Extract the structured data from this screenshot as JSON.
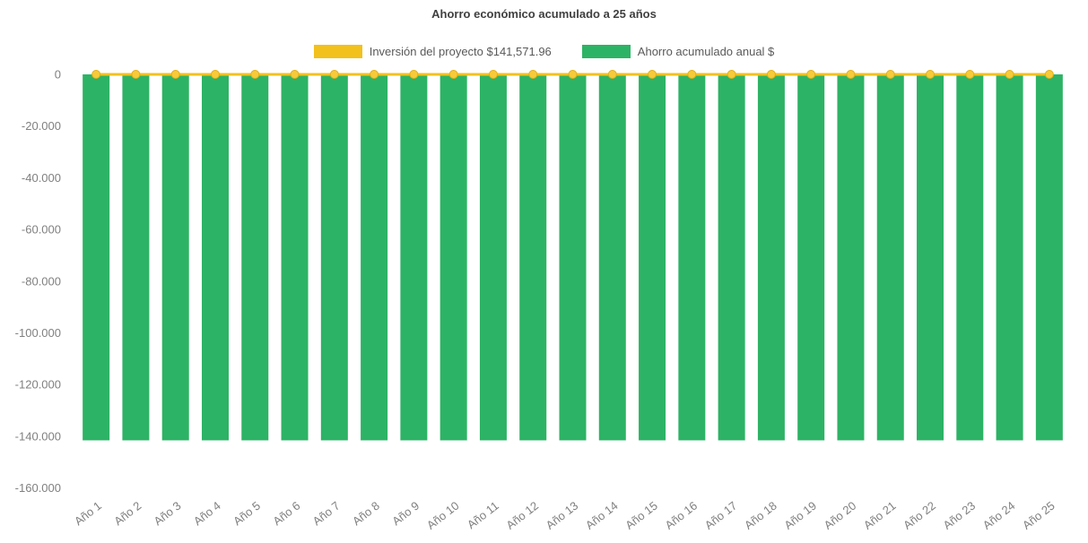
{
  "title": "Ahorro económico acumulado a 25 años",
  "legend": {
    "items": [
      {
        "label": "Inversión del proyecto $141,571.96",
        "color": "#f2c11c"
      },
      {
        "label": "Ahorro acumulado anual $",
        "color": "#2db365"
      }
    ]
  },
  "colors": {
    "bar": "#2db365",
    "line": "#f2c11c",
    "marker_fill": "#f6ca3a",
    "marker_stroke": "#e3ae14",
    "axis_text": "#808080",
    "title_text": "#404040"
  },
  "chart_data": {
    "type": "combo",
    "categories": [
      "Año 1",
      "Año 2",
      "Año 3",
      "Año 4",
      "Año 5",
      "Año 6",
      "Año 7",
      "Año 8",
      "Año 9",
      "Año 10",
      "Año 11",
      "Año 12",
      "Año 13",
      "Año 14",
      "Año 15",
      "Año 16",
      "Año 17",
      "Año 18",
      "Año 19",
      "Año 20",
      "Año 21",
      "Año 22",
      "Año 23",
      "Año 24",
      "Año 25"
    ],
    "series": [
      {
        "name": "Ahorro acumulado anual $",
        "type": "bar",
        "color": "#2db365",
        "values": [
          -141571.96,
          -141571.96,
          -141571.96,
          -141571.96,
          -141571.96,
          -141571.96,
          -141571.96,
          -141571.96,
          -141571.96,
          -141571.96,
          -141571.96,
          -141571.96,
          -141571.96,
          -141571.96,
          -141571.96,
          -141571.96,
          -141571.96,
          -141571.96,
          -141571.96,
          -141571.96,
          -141571.96,
          -141571.96,
          -141571.96,
          -141571.96,
          -141571.96
        ]
      },
      {
        "name": "Inversión del proyecto $141,571.96",
        "type": "line",
        "color": "#f2c11c",
        "values": [
          0,
          0,
          0,
          0,
          0,
          0,
          0,
          0,
          0,
          0,
          0,
          0,
          0,
          0,
          0,
          0,
          0,
          0,
          0,
          0,
          0,
          0,
          0,
          0,
          0
        ]
      }
    ],
    "title": "Ahorro económico acumulado a 25 años",
    "xlabel": "",
    "ylabel": "",
    "ylim": [
      -160000,
      0
    ],
    "yticks": [
      0,
      -20000,
      -40000,
      -60000,
      -80000,
      -100000,
      -120000,
      -140000,
      -160000
    ],
    "ytick_labels": [
      "0",
      "-20.000",
      "-40.000",
      "-60.000",
      "-80.000",
      "-100.000",
      "-120.000",
      "-140.000",
      "-160.000"
    ],
    "grid": false,
    "legend_position": "top"
  }
}
